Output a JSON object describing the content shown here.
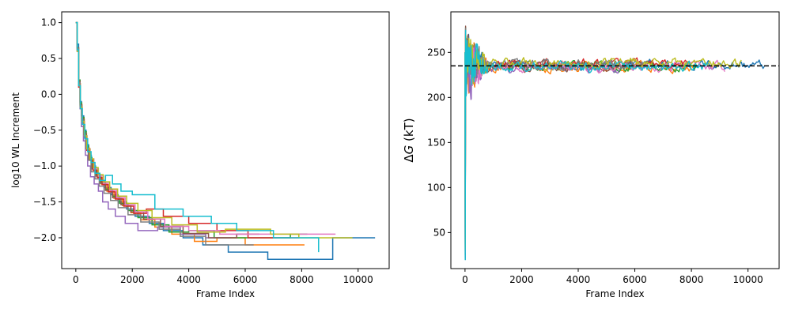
{
  "chart_data": [
    {
      "type": "line",
      "title": "",
      "xlabel": "Frame Index",
      "ylabel": "log10 WL Increment",
      "xlim": [
        -500,
        11100
      ],
      "ylim": [
        -2.43,
        1.15
      ],
      "xticks": [
        0,
        2000,
        4000,
        6000,
        8000,
        10000
      ],
      "yticks": [
        1.0,
        0.5,
        0.0,
        -0.5,
        -1.0,
        -1.5,
        -2.0
      ],
      "step": true,
      "grid": false,
      "legend": "none",
      "series": [
        {
          "color": "#1f77b4",
          "x": [
            0,
            50,
            100,
            150,
            200,
            280,
            360,
            450,
            550,
            700,
            850,
            1000,
            1250,
            1500,
            1800,
            2100,
            2600,
            3100,
            3800,
            4500,
            5400,
            6800,
            9100,
            10600
          ],
          "y": [
            1.0,
            0.7,
            0.2,
            -0.1,
            -0.3,
            -0.5,
            -0.7,
            -0.85,
            -1.0,
            -1.1,
            -1.2,
            -1.3,
            -1.4,
            -1.5,
            -1.6,
            -1.7,
            -1.8,
            -1.9,
            -2.0,
            -2.1,
            -2.2,
            -2.3,
            -2.0,
            -2.0
          ]
        },
        {
          "color": "#ff7f0e",
          "x": [
            0,
            50,
            100,
            160,
            220,
            300,
            380,
            480,
            600,
            750,
            900,
            1100,
            1350,
            1650,
            1950,
            2300,
            2800,
            3400,
            4200,
            5000,
            6000,
            8100
          ],
          "y": [
            1.0,
            0.6,
            0.15,
            -0.15,
            -0.35,
            -0.55,
            -0.75,
            -0.9,
            -1.05,
            -1.15,
            -1.25,
            -1.35,
            -1.45,
            -1.55,
            -1.65,
            -1.75,
            -1.85,
            -1.95,
            -2.05,
            -2.0,
            -2.1,
            -2.1
          ]
        },
        {
          "color": "#2ca02c",
          "x": [
            0,
            50,
            100,
            150,
            210,
            290,
            370,
            460,
            570,
            720,
            870,
            1050,
            1300,
            1550,
            1850,
            2200,
            2700,
            3300,
            4000,
            4900,
            6000,
            7600,
            8200
          ],
          "y": [
            1.0,
            0.65,
            0.2,
            -0.12,
            -0.32,
            -0.52,
            -0.72,
            -0.88,
            -1.02,
            -1.12,
            -1.22,
            -1.32,
            -1.42,
            -1.52,
            -1.62,
            -1.72,
            -1.82,
            -1.92,
            -1.9,
            -2.0,
            -2.0,
            -1.95,
            -1.95
          ]
        },
        {
          "color": "#d62728",
          "x": [
            0,
            50,
            100,
            150,
            220,
            300,
            390,
            490,
            610,
            760,
            930,
            1150,
            1400,
            1700,
            2050,
            2500,
            3100,
            4000,
            5000,
            6100,
            7200,
            7900
          ],
          "y": [
            1.0,
            0.6,
            0.1,
            -0.2,
            -0.4,
            -0.6,
            -0.78,
            -0.92,
            -1.06,
            -1.16,
            -1.26,
            -1.36,
            -1.46,
            -1.56,
            -1.66,
            -1.6,
            -1.7,
            -1.8,
            -1.9,
            -2.0,
            -2.0,
            -2.0
          ]
        },
        {
          "color": "#9467bd",
          "x": [
            0,
            50,
            100,
            150,
            200,
            270,
            340,
            420,
            520,
            650,
            800,
            950,
            1150,
            1400,
            1750,
            2200,
            2900,
            3700,
            4600,
            5500
          ],
          "y": [
            1.0,
            0.6,
            0.15,
            -0.2,
            -0.45,
            -0.65,
            -0.85,
            -1.0,
            -1.15,
            -1.25,
            -1.35,
            -1.5,
            -1.6,
            -1.7,
            -1.8,
            -1.9,
            -1.85,
            -1.95,
            -2.0,
            -2.0
          ]
        },
        {
          "color": "#8c564b",
          "x": [
            0,
            50,
            100,
            150,
            210,
            280,
            360,
            450,
            560,
            700,
            860,
            1050,
            1300,
            1600,
            1950,
            2400,
            3000,
            3800,
            4700,
            5700,
            6500
          ],
          "y": [
            1.0,
            0.65,
            0.18,
            -0.14,
            -0.34,
            -0.54,
            -0.74,
            -0.9,
            -1.04,
            -1.14,
            -1.24,
            -1.34,
            -1.44,
            -1.54,
            -1.64,
            -1.74,
            -1.84,
            -1.94,
            -2.0,
            -1.95,
            -1.95
          ]
        },
        {
          "color": "#e377c2",
          "x": [
            0,
            50,
            100,
            160,
            230,
            310,
            400,
            510,
            640,
            800,
            980,
            1200,
            1450,
            1750,
            2100,
            2550,
            3150,
            4000,
            5100,
            6300,
            7500,
            9200
          ],
          "y": [
            1.0,
            0.62,
            0.12,
            -0.18,
            -0.38,
            -0.58,
            -0.76,
            -0.9,
            -1.04,
            -1.14,
            -1.24,
            -1.34,
            -1.44,
            -1.54,
            -1.64,
            -1.74,
            -1.84,
            -1.9,
            -1.95,
            -1.95,
            -1.95,
            -1.95
          ]
        },
        {
          "color": "#7f7f7f",
          "x": [
            0,
            50,
            100,
            150,
            210,
            280,
            350,
            440,
            540,
            680,
            830,
            1000,
            1230,
            1500,
            1850,
            2300,
            2950,
            3700,
            4600,
            5600,
            6300
          ],
          "y": [
            1.0,
            0.64,
            0.16,
            -0.16,
            -0.36,
            -0.56,
            -0.76,
            -0.92,
            -1.08,
            -1.18,
            -1.28,
            -1.38,
            -1.48,
            -1.58,
            -1.68,
            -1.78,
            -1.88,
            -1.98,
            -2.1,
            -2.1,
            -2.1
          ]
        },
        {
          "color": "#bcbd22",
          "x": [
            0,
            50,
            100,
            160,
            220,
            300,
            390,
            500,
            630,
            790,
            970,
            1200,
            1480,
            1800,
            2200,
            2700,
            3400,
            4300,
            5300,
            6900,
            7900,
            9800
          ],
          "y": [
            1.0,
            0.6,
            0.12,
            -0.18,
            -0.38,
            -0.58,
            -0.76,
            -0.9,
            -1.02,
            -1.12,
            -1.22,
            -1.32,
            -1.42,
            -1.52,
            -1.62,
            -1.72,
            -1.82,
            -1.92,
            -1.88,
            -1.95,
            -2.0,
            -2.0
          ]
        },
        {
          "color": "#17becf",
          "x": [
            0,
            50,
            100,
            160,
            230,
            320,
            420,
            540,
            680,
            850,
            1050,
            1300,
            1600,
            2000,
            2800,
            3800,
            4800,
            5700,
            7000,
            8600
          ],
          "y": [
            1.0,
            0.62,
            0.12,
            -0.2,
            -0.42,
            -0.62,
            -0.8,
            -0.95,
            -1.1,
            -1.2,
            -1.13,
            -1.25,
            -1.35,
            -1.4,
            -1.6,
            -1.7,
            -1.8,
            -1.9,
            -2.0,
            -2.2
          ]
        }
      ]
    },
    {
      "type": "line",
      "title": "",
      "xlabel": "Frame Index",
      "ylabel": "ΔG (kT)",
      "ylabel_symbol": "Δ",
      "ylabel_italic": "G",
      "ylabel_rest": " (kT)",
      "xlim": [
        -500,
        11100
      ],
      "ylim": [
        10,
        295
      ],
      "xticks": [
        0,
        2000,
        4000,
        6000,
        8000,
        10000
      ],
      "yticks": [
        250,
        200,
        150,
        100,
        50
      ],
      "grid": false,
      "legend": "none",
      "reference_line": {
        "y": 235,
        "style": "dashed",
        "color": "#000000"
      },
      "series": [
        {
          "color": "#1f77b4",
          "end": 10600,
          "final": 236
        },
        {
          "color": "#ff7f0e",
          "end": 8100,
          "final": 234
        },
        {
          "color": "#2ca02c",
          "end": 8200,
          "final": 235
        },
        {
          "color": "#d62728",
          "end": 7900,
          "final": 237
        },
        {
          "color": "#9467bd",
          "end": 5500,
          "final": 233
        },
        {
          "color": "#8c564b",
          "end": 6500,
          "final": 235
        },
        {
          "color": "#e377c2",
          "end": 9200,
          "final": 234
        },
        {
          "color": "#7f7f7f",
          "end": 6300,
          "final": 236
        },
        {
          "color": "#bcbd22",
          "end": 9800,
          "final": 238
        },
        {
          "color": "#17becf",
          "end": 8600,
          "final": 234
        }
      ]
    }
  ]
}
